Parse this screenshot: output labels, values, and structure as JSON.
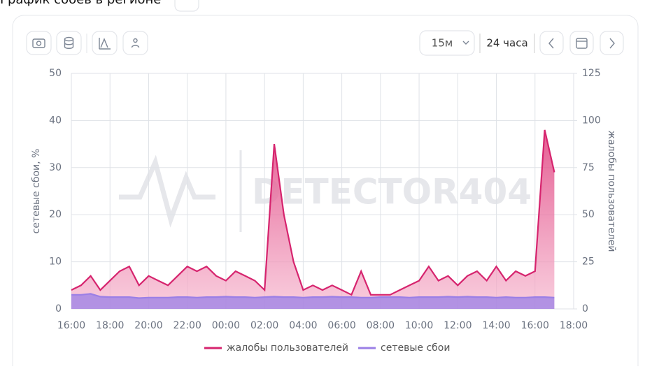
{
  "page": {
    "title": "График сбоев в регионе",
    "interval": "15м",
    "range": "24 часа"
  },
  "chart_data": {
    "type": "line",
    "watermark": "DETECTOR404",
    "y_label": "сетевые сбои, %",
    "y2_label": "жалобы пользователей",
    "x": [
      0,
      0.5,
      1,
      1.5,
      2,
      2.5,
      3,
      3.5,
      4,
      4.5,
      5,
      5.5,
      6,
      6.5,
      7,
      7.5,
      8,
      8.5,
      9,
      9.5,
      10,
      10.5,
      11,
      11.5,
      12,
      12.5,
      13,
      13.5,
      14,
      14.5,
      15,
      15.5,
      16,
      16.5,
      17,
      17.5,
      18,
      18.5,
      19,
      19.5,
      20,
      20.5,
      21,
      21.5,
      22,
      22.5,
      23,
      23.5,
      24,
      24.5,
      25
    ],
    "xlim": [
      0,
      26
    ],
    "xticks": [
      {
        "value": 0,
        "label": "16:00"
      },
      {
        "value": 2,
        "label": "18:00"
      },
      {
        "value": 4,
        "label": "20:00"
      },
      {
        "value": 6,
        "label": "22:00"
      },
      {
        "value": 8,
        "label": "00:00"
      },
      {
        "value": 10,
        "label": "02:00"
      },
      {
        "value": 12,
        "label": "04:00"
      },
      {
        "value": 14,
        "label": "06:00"
      },
      {
        "value": 16,
        "label": "08:00"
      },
      {
        "value": 18,
        "label": "10:00"
      },
      {
        "value": 20,
        "label": "12:00"
      },
      {
        "value": 22,
        "label": "14:00"
      },
      {
        "value": 24,
        "label": "16:00"
      },
      {
        "value": 26,
        "label": "18:00"
      }
    ],
    "ylim": [
      0,
      50
    ],
    "yticks": [
      0,
      10,
      20,
      30,
      40,
      50
    ],
    "y2lim": [
      0,
      125
    ],
    "y2ticks": [
      0,
      25,
      50,
      75,
      100,
      125
    ],
    "grid": true,
    "series": [
      {
        "name": "жалобы пользователей",
        "color": "#d6246e",
        "axis": "y2",
        "values": [
          10,
          12.5,
          17.5,
          10,
          15,
          20,
          22.5,
          12.5,
          17.5,
          15,
          12.5,
          17.5,
          22.5,
          20,
          22.5,
          17.5,
          15,
          20,
          17.5,
          15,
          10,
          87.5,
          50,
          25,
          10,
          12.5,
          10,
          12.5,
          10,
          7.5,
          20,
          7.5,
          7.5,
          7.5,
          10,
          12.5,
          15,
          22.5,
          15,
          17.5,
          12.5,
          17.5,
          20,
          15,
          22.5,
          15,
          20,
          17.5,
          20,
          95,
          72.5
        ]
      },
      {
        "name": "сетевые сбои",
        "color": "#9b7fe6",
        "axis": "y",
        "values": [
          3,
          3,
          3.2,
          2.6,
          2.5,
          2.5,
          2.5,
          2.3,
          2.4,
          2.4,
          2.4,
          2.5,
          2.5,
          2.4,
          2.5,
          2.5,
          2.6,
          2.5,
          2.5,
          2.4,
          2.5,
          2.6,
          2.5,
          2.5,
          2.4,
          2.5,
          2.5,
          2.6,
          2.5,
          2.5,
          2.4,
          2.4,
          2.5,
          2.5,
          2.5,
          2.4,
          2.5,
          2.5,
          2.5,
          2.6,
          2.5,
          2.6,
          2.5,
          2.5,
          2.4,
          2.5,
          2.4,
          2.4,
          2.5,
          2.5,
          2.4
        ]
      }
    ]
  }
}
